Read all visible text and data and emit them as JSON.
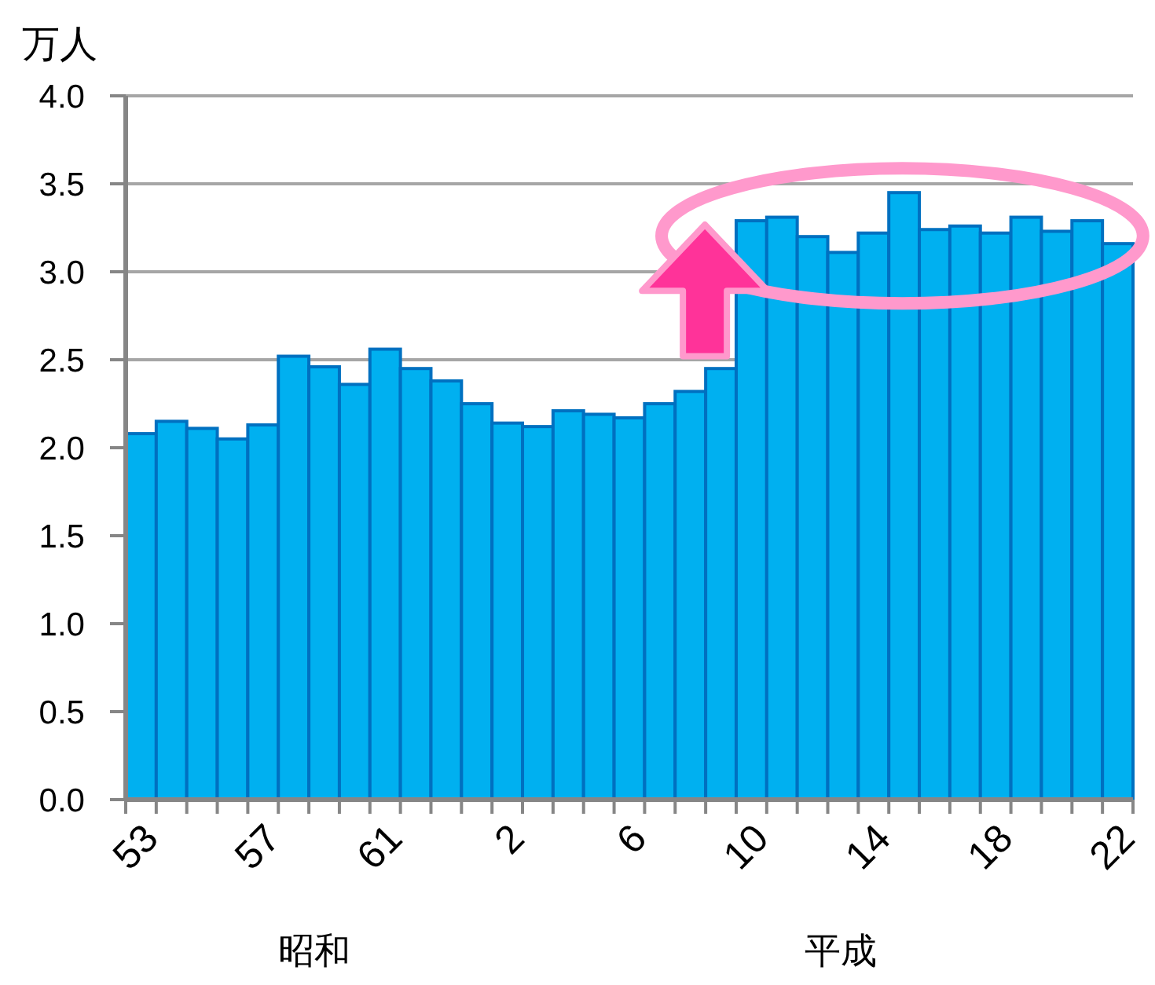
{
  "chart_data": {
    "type": "bar",
    "ylabel": "万人",
    "categories": [
      "53",
      null,
      null,
      null,
      "57",
      null,
      null,
      null,
      "61",
      null,
      null,
      null,
      "2",
      null,
      null,
      null,
      "6",
      null,
      null,
      null,
      "10",
      null,
      null,
      null,
      "14",
      null,
      null,
      null,
      "18",
      null,
      null,
      null,
      "22"
    ],
    "values": [
      2.08,
      2.15,
      2.11,
      2.05,
      2.13,
      2.52,
      2.46,
      2.36,
      2.56,
      2.45,
      2.38,
      2.25,
      2.14,
      2.12,
      2.21,
      2.19,
      2.17,
      2.25,
      2.32,
      2.45,
      3.29,
      3.31,
      3.2,
      3.11,
      3.22,
      3.45,
      3.24,
      3.26,
      3.22,
      3.31,
      3.23,
      3.29,
      3.16
    ],
    "color": "#00b0f0",
    "ylim": [
      0,
      4
    ],
    "yticks": [
      {
        "value": 0,
        "label": "0.0"
      },
      {
        "value": 0.5,
        "label": "0.5"
      },
      {
        "value": 1,
        "label": "1.0"
      },
      {
        "value": 1.5,
        "label": "1.5"
      },
      {
        "value": 2,
        "label": "2.0"
      },
      {
        "value": 2.5,
        "label": "2.5"
      },
      {
        "value": 3,
        "label": "3.0"
      },
      {
        "value": 3.5,
        "label": "3.5"
      },
      {
        "value": 4,
        "label": "4.0"
      }
    ],
    "grid": "y",
    "annotations": [
      "昭和",
      "平成"
    ]
  }
}
